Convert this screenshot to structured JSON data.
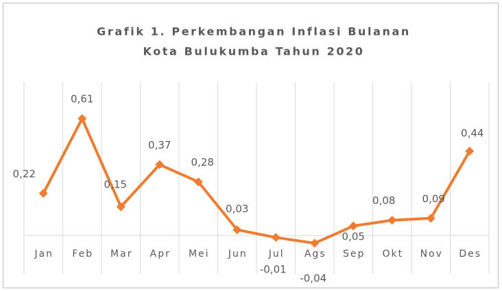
{
  "chart_data": {
    "type": "line",
    "title": [
      "Grafik 1. Perkembangan Inflasi Bulanan",
      "Kota Bulukumba Tahun 2020"
    ],
    "categories": [
      "Jan",
      "Feb",
      "Mar",
      "Apr",
      "Mei",
      "Jun",
      "Jul",
      "Ags",
      "Sep",
      "Okt",
      "Nov",
      "Des"
    ],
    "values": [
      0.22,
      0.61,
      0.15,
      0.37,
      0.28,
      0.03,
      -0.01,
      -0.04,
      0.05,
      0.08,
      0.09,
      0.44
    ],
    "value_labels": [
      "0,22",
      "0,61",
      "0,15",
      "0,37",
      "0,28",
      "0,03",
      "-0,01",
      "-0,04",
      "0,05",
      "0,08",
      "0,09",
      "0,44"
    ],
    "color": "#ed7d31",
    "ylim": [
      -0.2,
      0.8
    ],
    "grid": true
  }
}
